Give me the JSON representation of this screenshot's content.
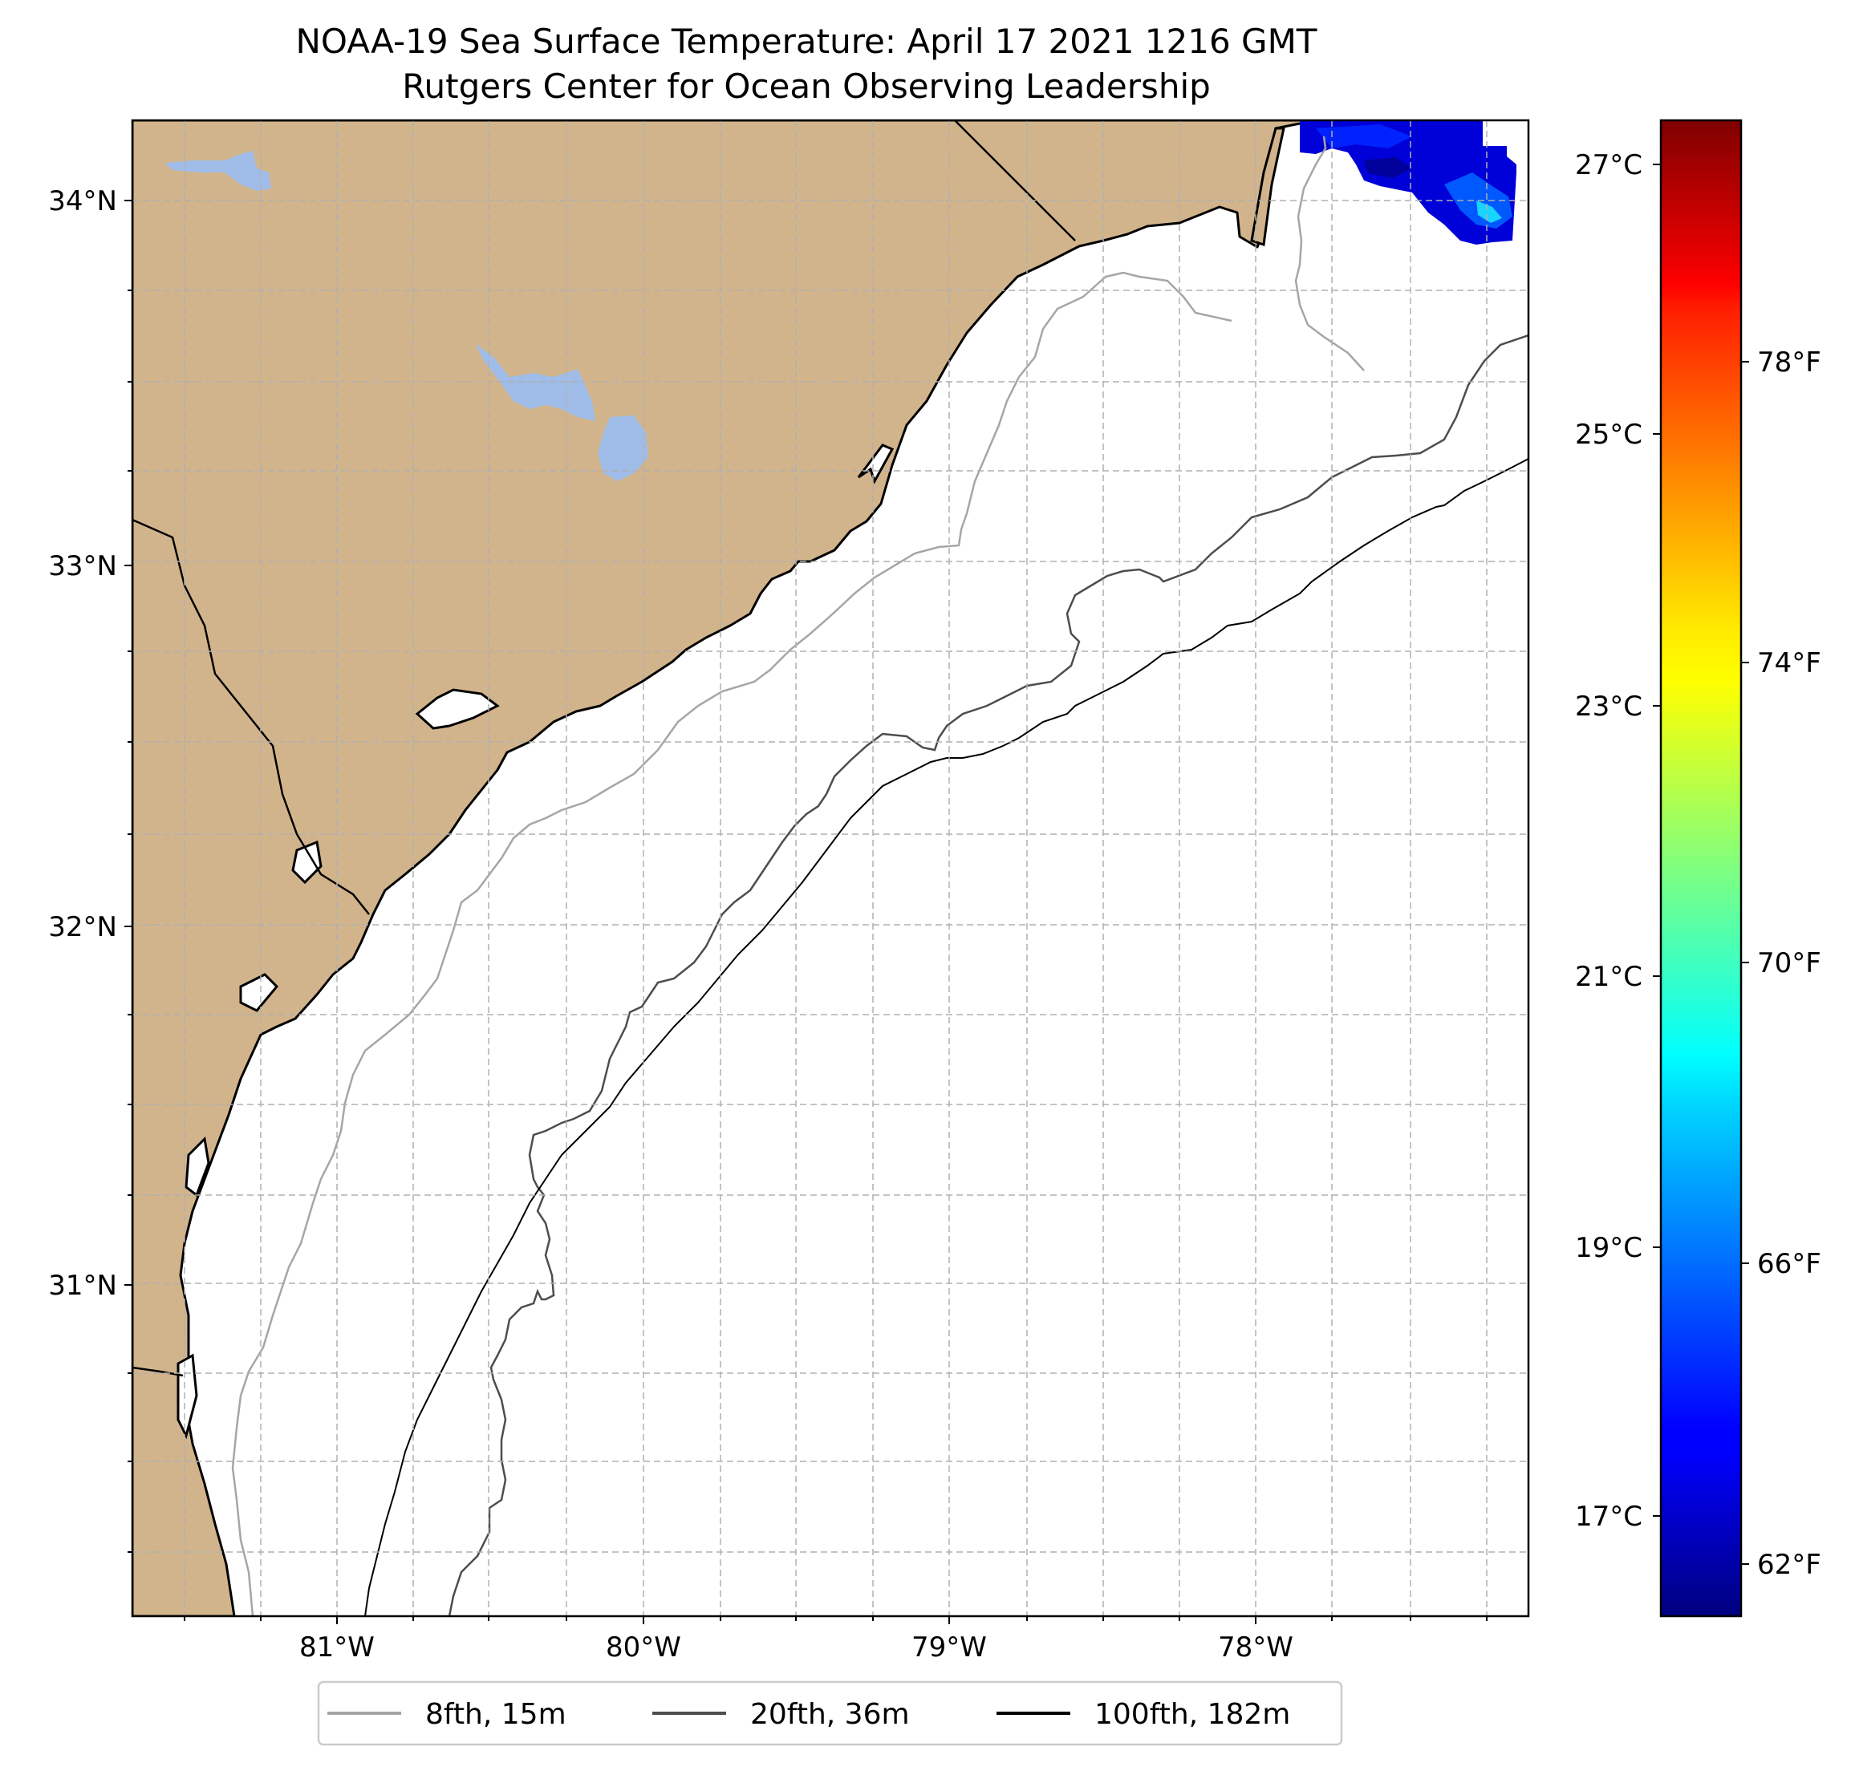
{
  "title": {
    "line1": "NOAA-19 Sea Surface Temperature: April 17 2021 1216 GMT",
    "line2": "Rutgers Center for Ocean Observing Leadership"
  },
  "map": {
    "extent": {
      "lon_min": -81.68,
      "lon_max": -77.12,
      "lat_min": 30.07,
      "lat_max": 34.22
    },
    "land_color": "#d2b48c",
    "water_color": "#9fbde8",
    "lat_ticks": [
      {
        "value": 34,
        "label": "34°N"
      },
      {
        "value": 33,
        "label": "33°N"
      },
      {
        "value": 32,
        "label": "32°N"
      },
      {
        "value": 31,
        "label": "31°N"
      }
    ],
    "lon_ticks": [
      {
        "value": -81,
        "label": "81°W"
      },
      {
        "value": -80,
        "label": "80°W"
      },
      {
        "value": -79,
        "label": "79°W"
      },
      {
        "value": -78,
        "label": "78°W"
      }
    ],
    "grid": true
  },
  "colorbar": {
    "colormap": "jet",
    "range_c": [
      16.4,
      27.5
    ],
    "celsius_ticks": [
      {
        "value": 17,
        "label": "17°C"
      },
      {
        "value": 19,
        "label": "19°C"
      },
      {
        "value": 21,
        "label": "21°C"
      },
      {
        "value": 23,
        "label": "23°C"
      },
      {
        "value": 25,
        "label": "25°C"
      },
      {
        "value": 27,
        "label": "27°C"
      }
    ],
    "fahrenheit_ticks": [
      {
        "value": 62,
        "label": "62°F"
      },
      {
        "value": 66,
        "label": "66°F"
      },
      {
        "value": 70,
        "label": "70°F"
      },
      {
        "value": 74,
        "label": "74°F"
      },
      {
        "value": 78,
        "label": "78°F"
      }
    ]
  },
  "legend": {
    "placement": "bottom-center",
    "items": [
      {
        "label": "8fth, 15m",
        "color": "#a6a6a6"
      },
      {
        "label": "20fth, 36m",
        "color": "#4d4d4d"
      },
      {
        "label": "100fth, 182m",
        "color": "#000000"
      }
    ]
  }
}
